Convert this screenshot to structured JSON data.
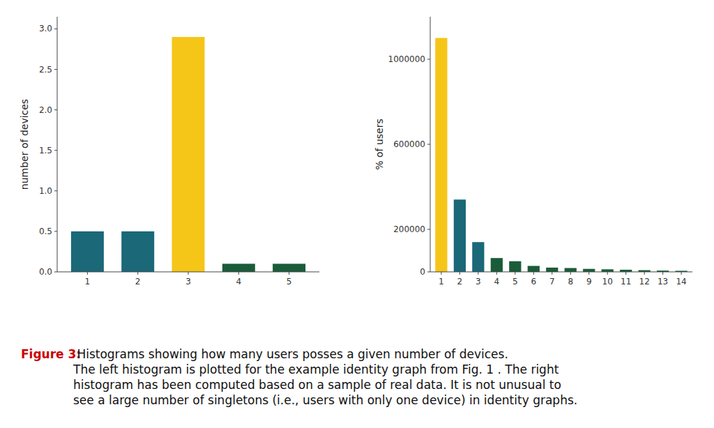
{
  "chart_data": [
    {
      "type": "bar",
      "y_label": "number of devices",
      "categories": [
        "1",
        "2",
        "3",
        "4",
        "5"
      ],
      "values": [
        0.5,
        0.5,
        2.9,
        0.1,
        0.1
      ],
      "colors": [
        "#1a6878",
        "#1a6878",
        "#f5c518",
        "#1a5c3a",
        "#1a5c3a"
      ],
      "ylim": [
        0,
        3.15
      ],
      "yticks": [
        {
          "value": 0.0,
          "label": "0.0"
        },
        0.5,
        {
          "value": 1.0,
          "label": "1.0"
        },
        1.5,
        {
          "value": 2.0,
          "label": "2.0"
        },
        2.5,
        {
          "value": 3.0,
          "label": "3.0"
        }
      ],
      "grid": false,
      "annotations": [
        {
          "text": "Figure 3:",
          "color": "#cc0000"
        },
        {
          "text": " Histograms showing how many users posses a given number of devices.\nThe left histogram is plotted for the example identity graph from Fig. 1 . The right\nhistogram has been computed based on a sample of real data. It is not unusual to\nsee a large number of singletons (i.e., users with only one device) in identity graphs.",
          "color": "#111111"
        }
      ]
    },
    {
      "type": "bar",
      "y_label": "% of users",
      "categories": [
        "1",
        "2",
        "3",
        "4",
        "5",
        "6",
        "7",
        "8",
        "9",
        "10",
        "11",
        "12",
        "13",
        "14"
      ],
      "values": [
        1100000,
        340000,
        140000,
        65000,
        50000,
        28000,
        20000,
        18000,
        14000,
        12000,
        10000,
        8000,
        6000,
        5000
      ],
      "colors": [
        "#f5c518",
        "#1a6878",
        "#1a6878",
        "#1a5c3a",
        "#1a5c3a",
        "#1a5c3a",
        "#1a5c3a",
        "#1a5c3a",
        "#1a5c3a",
        "#1a5c3a",
        "#1a5c3a",
        "#1a5c3a",
        "#1a5c3a",
        "#1a5c3a"
      ],
      "ylim": [
        0,
        1200000
      ],
      "yticks": [
        0,
        200000,
        600000,
        1000000
      ],
      "grid": false
    }
  ]
}
